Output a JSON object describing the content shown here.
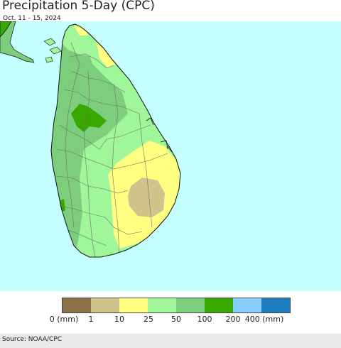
{
  "title": "Precipitation 5-Day (CPC)",
  "subtitle": "Oct. 11 - 15, 2024",
  "source": "Source: NOAA/CPC",
  "colors": {
    "ocean": "#c6ffff",
    "land_outline": "#111111",
    "district_lines": "#6e6e6e"
  },
  "legend": {
    "bins": [
      {
        "color": "#8b6f47"
      },
      {
        "color": "#d2c28c"
      },
      {
        "color": "#ffff80"
      },
      {
        "color": "#a0f79a"
      },
      {
        "color": "#7ccd7c"
      },
      {
        "color": "#38a800"
      },
      {
        "color": "#87ceff"
      },
      {
        "color": "#1e7fbf"
      }
    ],
    "ticks": [
      "0 (mm)",
      "1",
      "10",
      "25",
      "50",
      "100",
      "200",
      "400 (mm)"
    ]
  }
}
